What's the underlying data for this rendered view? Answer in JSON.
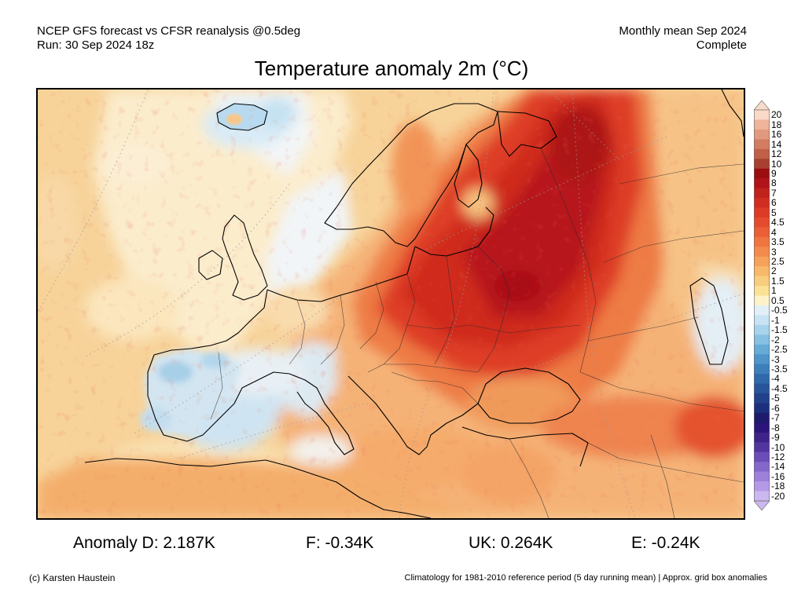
{
  "header": {
    "left_line1": "NCEP GFS forecast vs CFSR reanalysis @0.5deg",
    "left_line2": "Run: 30 Sep 2024 18z",
    "right_line1": "Monthly mean Sep 2024",
    "right_line2": "Complete",
    "title": "Temperature anomaly 2m (°C)"
  },
  "colorbar": {
    "labels": [
      "20",
      "18",
      "16",
      "14",
      "12",
      "10",
      "9",
      "8",
      "7",
      "6",
      "5",
      "4.5",
      "4",
      "3.5",
      "3",
      "2.5",
      "2",
      "1.5",
      "1",
      "0.5",
      "-0.5",
      "-1",
      "-1.5",
      "-2",
      "-2.5",
      "-3",
      "-3.5",
      "-4",
      "-4.5",
      "-5",
      "-6",
      "-7",
      "-8",
      "-9",
      "-10",
      "-12",
      "-14",
      "-16",
      "-18",
      "-20"
    ],
    "colors": [
      "#f9d9c8",
      "#efb49a",
      "#e29a7e",
      "#d27d62",
      "#c06048",
      "#a84030",
      "#9c0d10",
      "#b0141a",
      "#c0221c",
      "#d02d20",
      "#dd3b26",
      "#e44b2c",
      "#ea5f36",
      "#ef7540",
      "#f38b4c",
      "#f6a25b",
      "#f8b86a",
      "#f9cd7e",
      "#fae196",
      "#fcf3c8",
      "#e2eff8",
      "#c8e3f3",
      "#a8d3ec",
      "#86c0e2",
      "#66abd6",
      "#4f95c9",
      "#3d7fbb",
      "#3069ab",
      "#27549b",
      "#22418b",
      "#1c2f7c",
      "#1e1a6c",
      "#2c157a",
      "#3e2389",
      "#5236a0",
      "#6a4db8",
      "#8467cb",
      "#9c80da",
      "#b49ae6",
      "#ccb8f0"
    ]
  },
  "stats": {
    "d": "Anomaly D: 2.187K",
    "f": "F: -0.34K",
    "uk": "UK: 0.264K",
    "e": "E: -0.24K"
  },
  "footer": {
    "left": "(c) Karsten Haustein",
    "right": "Climatology for 1981-2010 reference period (5 day running mean) | Approx. grid box anomalies"
  }
}
